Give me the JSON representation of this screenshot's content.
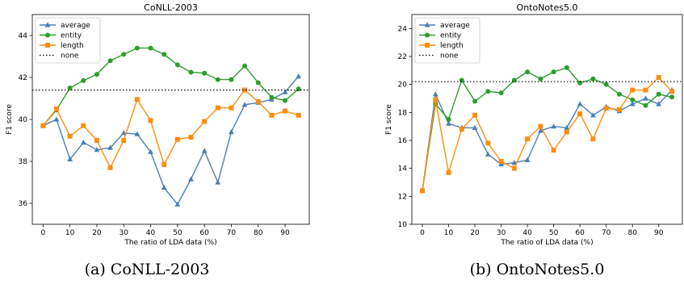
{
  "figure": {
    "captions": [
      "(a) CoNLL-2003",
      "(b) OntoNotes5.0"
    ]
  },
  "chart_data": [
    {
      "type": "line",
      "title": "CoNLL-2003",
      "xlabel": "The ratio of LDA data (%)",
      "ylabel": "F1 score",
      "xlim": [
        -4,
        99
      ],
      "ylim": [
        35,
        45
      ],
      "xticks": [
        0,
        10,
        20,
        30,
        40,
        50,
        60,
        70,
        80,
        90
      ],
      "yticks": [
        36,
        38,
        40,
        42,
        44
      ],
      "x": [
        0,
        5,
        10,
        15,
        20,
        25,
        30,
        35,
        40,
        45,
        50,
        55,
        60,
        65,
        70,
        75,
        80,
        85,
        90,
        95
      ],
      "legend": "upper-left",
      "grid": false,
      "series": [
        {
          "name": "average",
          "color": "#4a7fb4",
          "marker": "triangle",
          "values": [
            39.7,
            40.0,
            38.1,
            38.9,
            38.55,
            38.65,
            39.35,
            39.3,
            38.45,
            36.75,
            35.95,
            37.15,
            38.5,
            37.0,
            39.4,
            40.7,
            40.8,
            40.95,
            41.3,
            42.05
          ]
        },
        {
          "name": "entity",
          "color": "#2c9e2c",
          "marker": "circle",
          "values": [
            39.7,
            40.45,
            41.5,
            41.85,
            42.15,
            42.8,
            43.1,
            43.4,
            43.4,
            43.1,
            42.6,
            42.25,
            42.2,
            41.9,
            41.9,
            42.55,
            41.75,
            41.05,
            40.9,
            41.45
          ]
        },
        {
          "name": "length",
          "color": "#ff8c0e",
          "marker": "square",
          "values": [
            39.7,
            40.5,
            39.2,
            39.7,
            39.0,
            37.7,
            39.0,
            40.95,
            39.95,
            37.85,
            39.05,
            39.15,
            39.9,
            40.55,
            40.55,
            41.4,
            40.85,
            40.2,
            40.4,
            40.2
          ]
        },
        {
          "name": "none",
          "color": "#000000",
          "style": "dotted",
          "constant": 41.4
        }
      ]
    },
    {
      "type": "line",
      "title": "OntoNotes5.0",
      "xlabel": "The ratio of LDA data (%)",
      "ylabel": "F1 score",
      "xlim": [
        -4,
        99
      ],
      "ylim": [
        10,
        25
      ],
      "xticks": [
        0,
        10,
        20,
        30,
        40,
        50,
        60,
        70,
        80,
        90
      ],
      "yticks": [
        10,
        12,
        14,
        16,
        18,
        20,
        22,
        24
      ],
      "x": [
        0,
        5,
        10,
        15,
        20,
        25,
        30,
        35,
        40,
        45,
        50,
        55,
        60,
        65,
        70,
        75,
        80,
        85,
        90,
        95
      ],
      "legend": "upper-left",
      "grid": false,
      "series": [
        {
          "name": "average",
          "color": "#4a7fb4",
          "marker": "triangle",
          "values": [
            12.4,
            19.3,
            17.2,
            16.9,
            16.9,
            15.0,
            14.3,
            14.4,
            14.6,
            16.7,
            17.0,
            16.9,
            18.6,
            17.8,
            18.4,
            18.1,
            18.6,
            19.0,
            18.6,
            19.6
          ]
        },
        {
          "name": "entity",
          "color": "#2c9e2c",
          "marker": "circle",
          "values": [
            12.4,
            18.6,
            17.5,
            20.3,
            18.8,
            19.5,
            19.4,
            20.3,
            20.9,
            20.4,
            20.9,
            21.2,
            20.1,
            20.4,
            20.0,
            19.3,
            18.9,
            18.5,
            19.3,
            19.1
          ]
        },
        {
          "name": "length",
          "color": "#ff8c0e",
          "marker": "square",
          "values": [
            12.4,
            18.9,
            13.7,
            16.8,
            17.8,
            15.8,
            14.5,
            14.0,
            16.1,
            17.0,
            15.3,
            16.6,
            17.9,
            16.1,
            18.3,
            18.2,
            19.6,
            19.6,
            20.5,
            19.5
          ]
        },
        {
          "name": "none",
          "color": "#000000",
          "style": "dotted",
          "constant": 20.2
        }
      ]
    }
  ]
}
